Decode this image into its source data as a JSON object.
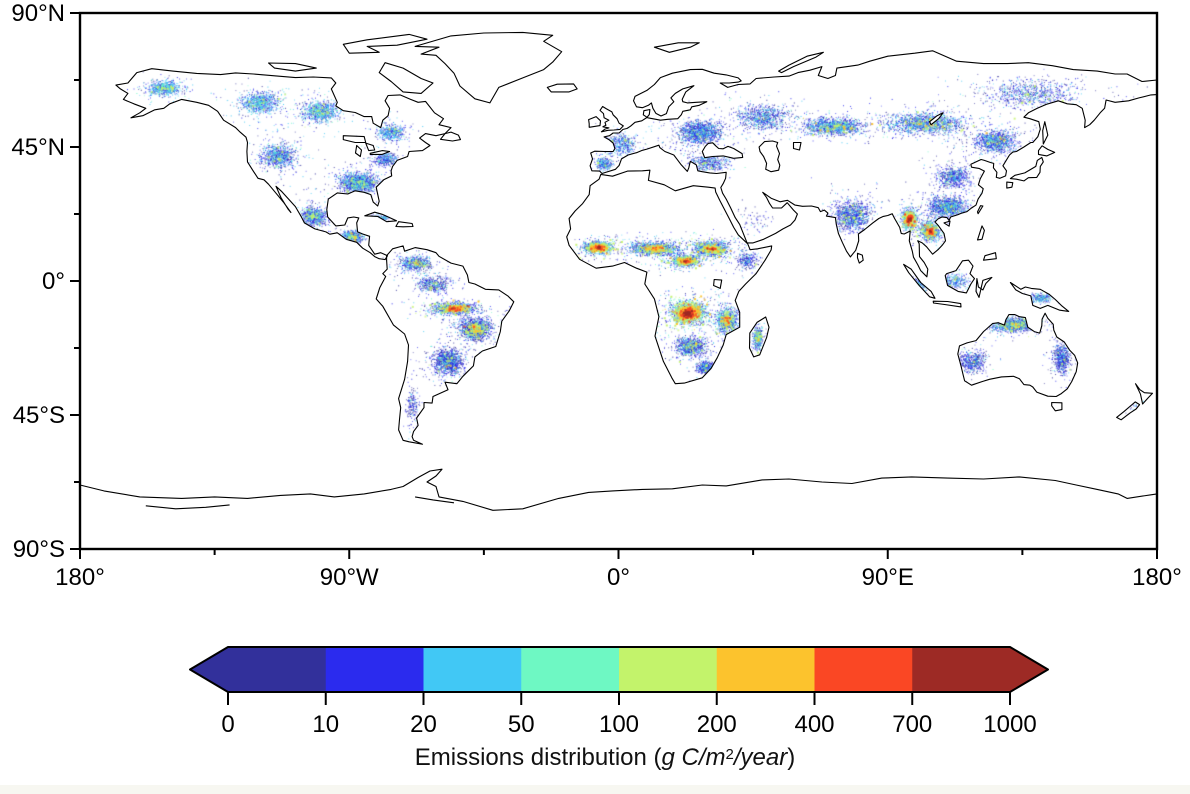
{
  "page": {
    "background": "#ffffff",
    "footer_strip_color": "#f7f7f1"
  },
  "chart_data": {
    "type": "heatmap",
    "title": "",
    "projection": "equirectangular world map",
    "units": "g C/m2/year",
    "axes": {
      "x": {
        "range_deg": [
          -180,
          180
        ],
        "tick_labels": [
          "180°",
          "90°W",
          "0°",
          "90°E",
          "180°"
        ],
        "major_step_deg": 90,
        "minor_step_deg": 45
      },
      "y": {
        "range_deg": [
          -90,
          90
        ],
        "tick_labels": [
          "90°N",
          "45°N",
          "0°",
          "45°S",
          "90°S"
        ],
        "major_step_deg": 45,
        "minor_step_deg": 22.5
      }
    },
    "colorbar": {
      "label_prefix": "Emissions distribution (",
      "label_italic_1": "g C/m",
      "label_superscript": "2",
      "label_italic_2": "/year",
      "label_suffix": ")",
      "tick_labels": [
        "0",
        "10",
        "20",
        "50",
        "100",
        "200",
        "400",
        "700",
        "1000"
      ],
      "bin_edges": [
        0,
        10,
        20,
        50,
        100,
        200,
        400,
        700,
        1000
      ],
      "bin_colors": [
        "#32309b",
        "#2b2bee",
        "#41c8f5",
        "#6ef8c3",
        "#c3f36b",
        "#fcc32d",
        "#fa4724",
        "#9d2a25"
      ],
      "arrow_low_color": "#32309b",
      "arrow_high_color": "#9d2a25"
    },
    "clusters": [
      {
        "name": "alaska",
        "lon": -152,
        "lat": 65,
        "rlon": 8,
        "rlat": 3.5,
        "n": 700,
        "w": [
          2,
          3,
          4,
          1,
          0.3,
          0,
          0,
          0
        ]
      },
      {
        "name": "canada-boreal-west",
        "lon": -120,
        "lat": 60,
        "rlon": 9,
        "rlat": 5,
        "n": 900,
        "w": [
          2,
          3,
          4,
          1,
          0.3,
          0,
          0,
          0
        ]
      },
      {
        "name": "canada-boreal-central",
        "lon": -100,
        "lat": 57,
        "rlon": 9,
        "rlat": 5,
        "n": 900,
        "w": [
          2,
          3,
          3,
          1,
          0.3,
          0,
          0,
          0
        ]
      },
      {
        "name": "canada-east",
        "lon": -76,
        "lat": 50,
        "rlon": 7,
        "rlat": 4,
        "n": 500,
        "w": [
          2,
          3,
          3,
          0.6,
          0.1,
          0,
          0,
          0
        ]
      },
      {
        "name": "us-west",
        "lon": -114,
        "lat": 42,
        "rlon": 8,
        "rlat": 6,
        "n": 900,
        "w": [
          3,
          3,
          2,
          0.6,
          0.15,
          0,
          0,
          0
        ]
      },
      {
        "name": "us-southeast",
        "lon": -87,
        "lat": 33,
        "rlon": 9,
        "rlat": 4.5,
        "n": 1500,
        "w": [
          3,
          3,
          2,
          0.8,
          0.2,
          0,
          0,
          0
        ]
      },
      {
        "name": "us-northeast",
        "lon": -78,
        "lat": 41,
        "rlon": 6,
        "rlat": 3.5,
        "n": 400,
        "w": [
          3,
          2.5,
          1.5,
          0.3,
          0,
          0,
          0,
          0
        ]
      },
      {
        "name": "mexico",
        "lon": -102,
        "lat": 22,
        "rlon": 6,
        "rlat": 4.5,
        "n": 800,
        "w": [
          3,
          3,
          2,
          0.7,
          0.2,
          0,
          0,
          0
        ]
      },
      {
        "name": "central-america",
        "lon": -89,
        "lat": 15,
        "rlon": 5,
        "rlat": 2.8,
        "n": 550,
        "w": [
          2.5,
          3,
          2,
          1,
          0.4,
          0.1,
          0,
          0
        ]
      },
      {
        "name": "cuba-caribbean",
        "lon": -79,
        "lat": 21.5,
        "rlon": 4.5,
        "rlat": 1.2,
        "n": 150,
        "w": [
          2.5,
          3,
          2,
          0.6,
          0.1,
          0,
          0,
          0
        ]
      },
      {
        "name": "colombia-venezuela",
        "lon": -68,
        "lat": 6,
        "rlon": 7,
        "rlat": 3.5,
        "n": 650,
        "w": [
          3,
          3,
          1.5,
          0.6,
          0.3,
          0.1,
          0,
          0
        ]
      },
      {
        "name": "amazon-north",
        "lon": -62,
        "lat": -1,
        "rlon": 8,
        "rlat": 4,
        "n": 500,
        "w": [
          3,
          2.5,
          1,
          0.3,
          0.1,
          0,
          0,
          0
        ]
      },
      {
        "name": "amazon-deforestation-arc",
        "lon": -55,
        "lat": -9,
        "rlon": 11,
        "rlat": 3,
        "n": 1100,
        "w": [
          2,
          2.5,
          1.5,
          1,
          0.9,
          0.5,
          0.25,
          0.06
        ]
      },
      {
        "name": "brazil-cerrado",
        "lon": -48,
        "lat": -16,
        "rlon": 7,
        "rlat": 5,
        "n": 1600,
        "w": [
          3.5,
          3,
          1.2,
          0.7,
          0.5,
          0.15,
          0.05,
          0
        ]
      },
      {
        "name": "brazil-south-paraguay",
        "lon": -57,
        "lat": -27,
        "rlon": 7,
        "rlat": 6,
        "n": 1300,
        "w": [
          4,
          3,
          1,
          0.4,
          0.15,
          0.04,
          0,
          0
        ]
      },
      {
        "name": "andes-patagonia",
        "lon": -69,
        "lat": -42,
        "rlon": 3,
        "rlat": 8,
        "n": 200,
        "w": [
          3,
          2,
          0.6,
          0.1,
          0,
          0,
          0,
          0
        ]
      },
      {
        "name": "europe-west",
        "lon": 0,
        "lat": 46,
        "rlon": 8,
        "rlat": 5,
        "n": 550,
        "w": [
          2.5,
          2.5,
          2,
          0.4,
          0.05,
          0,
          0,
          0
        ]
      },
      {
        "name": "iberia",
        "lon": -5,
        "lat": 39.5,
        "rlon": 4,
        "rlat": 2.8,
        "n": 300,
        "w": [
          2.5,
          2.5,
          2,
          0.5,
          0.1,
          0,
          0,
          0
        ]
      },
      {
        "name": "europe-east",
        "lon": 27,
        "lat": 50,
        "rlon": 10,
        "rlat": 5.5,
        "n": 1400,
        "w": [
          3,
          3,
          1.5,
          0.4,
          0.05,
          0,
          0,
          0
        ]
      },
      {
        "name": "balkans-turkey",
        "lon": 30,
        "lat": 40,
        "rlon": 10,
        "rlat": 4,
        "n": 500,
        "w": [
          3,
          2.5,
          1.2,
          0.3,
          0.05,
          0,
          0,
          0
        ]
      },
      {
        "name": "russia-west",
        "lon": 48,
        "lat": 55,
        "rlon": 12,
        "rlat": 6,
        "n": 900,
        "w": [
          3,
          3,
          1.5,
          0.4,
          0.05,
          0,
          0,
          0
        ]
      },
      {
        "name": "kazakh-steppe",
        "lon": 72,
        "lat": 52,
        "rlon": 14,
        "rlat": 4,
        "n": 1500,
        "w": [
          2.5,
          3,
          2,
          0.8,
          0.3,
          0.05,
          0,
          0
        ]
      },
      {
        "name": "siberia-south",
        "lon": 103,
        "lat": 53,
        "rlon": 18,
        "rlat": 5,
        "n": 1600,
        "w": [
          2.5,
          3,
          2,
          0.7,
          0.25,
          0.05,
          0,
          0
        ]
      },
      {
        "name": "siberia-northeast",
        "lon": 138,
        "lat": 63,
        "rlon": 22,
        "rlat": 7,
        "n": 900,
        "w": [
          2.5,
          3,
          1.5,
          0.4,
          0.1,
          0,
          0,
          0
        ]
      },
      {
        "name": "china-northeast-amur",
        "lon": 126,
        "lat": 47,
        "rlon": 9,
        "rlat": 5,
        "n": 1100,
        "w": [
          3,
          3.5,
          1.5,
          0.5,
          0.15,
          0.04,
          0,
          0
        ]
      },
      {
        "name": "north-china",
        "lon": 112,
        "lat": 35,
        "rlon": 8,
        "rlat": 5,
        "n": 700,
        "w": [
          3,
          3,
          1,
          0.3,
          0.05,
          0,
          0,
          0
        ]
      },
      {
        "name": "south-china",
        "lon": 110,
        "lat": 25,
        "rlon": 9,
        "rlat": 5,
        "n": 1300,
        "w": [
          3,
          3.5,
          1.5,
          0.5,
          0.15,
          0,
          0,
          0
        ]
      },
      {
        "name": "india",
        "lon": 78,
        "lat": 22,
        "rlon": 9,
        "rlat": 7,
        "n": 1200,
        "w": [
          3,
          3,
          1.2,
          0.4,
          0.1,
          0,
          0,
          0
        ]
      },
      {
        "name": "myanmar-northeast-india",
        "lon": 97,
        "lat": 21,
        "rlon": 4,
        "rlat": 5,
        "n": 900,
        "w": [
          1.5,
          2,
          2,
          1.5,
          1.2,
          0.8,
          0.5,
          0.12
        ]
      },
      {
        "name": "laos-vietnam-thailand",
        "lon": 104,
        "lat": 17,
        "rlon": 5,
        "rlat": 5,
        "n": 900,
        "w": [
          2,
          2.5,
          2,
          1.3,
          0.9,
          0.5,
          0.3,
          0.06
        ]
      },
      {
        "name": "borneo",
        "lon": 112,
        "lat": 0,
        "rlon": 7,
        "rlat": 3.5,
        "n": 350,
        "w": [
          2,
          2.5,
          2,
          0.5,
          0.1,
          0,
          0,
          0
        ]
      },
      {
        "name": "sumatra",
        "lon": 101,
        "lat": -1,
        "rlon": 4,
        "rlat": 3,
        "n": 220,
        "w": [
          2,
          2.5,
          2,
          0.5,
          0.1,
          0,
          0,
          0
        ]
      },
      {
        "name": "new-guinea",
        "lon": 141,
        "lat": -5.5,
        "rlon": 6,
        "rlat": 2.5,
        "n": 300,
        "w": [
          2,
          2.5,
          2,
          0.6,
          0.15,
          0,
          0,
          0
        ]
      },
      {
        "name": "west-africa-sahel",
        "lon": -7,
        "lat": 11.5,
        "rlon": 7,
        "rlat": 3,
        "n": 1300,
        "w": [
          1.5,
          2,
          2,
          1.3,
          1.5,
          0.8,
          0.3,
          0.07
        ]
      },
      {
        "name": "central-sahel",
        "lon": 12,
        "lat": 11,
        "rlon": 12,
        "rlat": 3.2,
        "n": 1500,
        "w": [
          2,
          2.5,
          1.8,
          1,
          0.8,
          0.3,
          0.1,
          0
        ]
      },
      {
        "name": "sudan-ethiopia",
        "lon": 31,
        "lat": 11,
        "rlon": 8,
        "rlat": 3.5,
        "n": 1300,
        "w": [
          2,
          2.5,
          1.8,
          1.2,
          1,
          0.4,
          0.12,
          0.02
        ]
      },
      {
        "name": "central-african-republic",
        "lon": 22,
        "lat": 7,
        "rlon": 7,
        "rlat": 2.8,
        "n": 1000,
        "w": [
          1.5,
          2,
          2,
          1.4,
          1.3,
          0.6,
          0.2,
          0.04
        ]
      },
      {
        "name": "congo-angola-zambia",
        "lon": 23,
        "lat": -10.5,
        "rlon": 9,
        "rlat": 6,
        "n": 2400,
        "w": [
          1,
          1.5,
          1.8,
          1.5,
          1.8,
          1.3,
          0.9,
          0.3
        ]
      },
      {
        "name": "tanzania-mozambique",
        "lon": 36,
        "lat": -13,
        "rlon": 5.5,
        "rlat": 6,
        "n": 1000,
        "w": [
          2,
          2.5,
          2,
          1.2,
          0.7,
          0.25,
          0.08,
          0
        ]
      },
      {
        "name": "southern-africa",
        "lon": 24,
        "lat": -22,
        "rlon": 7,
        "rlat": 4.5,
        "n": 900,
        "w": [
          3,
          3,
          1.2,
          0.5,
          0.2,
          0.05,
          0,
          0
        ]
      },
      {
        "name": "south-africa-east",
        "lon": 29,
        "lat": -29,
        "rlon": 4,
        "rlat": 3,
        "n": 450,
        "w": [
          3,
          3,
          1.2,
          0.4,
          0.1,
          0,
          0,
          0
        ]
      },
      {
        "name": "horn-of-africa",
        "lon": 43,
        "lat": 7,
        "rlon": 5,
        "rlat": 4,
        "n": 300,
        "w": [
          3,
          2.5,
          1,
          0.3,
          0.05,
          0,
          0,
          0
        ]
      },
      {
        "name": "arabia-sparse",
        "lon": 45,
        "lat": 20,
        "rlon": 8,
        "rlat": 6,
        "n": 70,
        "w": [
          3,
          2,
          0.5,
          0,
          0,
          0,
          0,
          0
        ]
      },
      {
        "name": "madagascar",
        "lon": 46.5,
        "lat": -19,
        "rlon": 2.2,
        "rlat": 5.5,
        "n": 450,
        "w": [
          2,
          2.5,
          2,
          1,
          0.5,
          0.12,
          0,
          0
        ]
      },
      {
        "name": "australia-north",
        "lon": 132,
        "lat": -14.5,
        "rlon": 11,
        "rlat": 3.5,
        "n": 1300,
        "w": [
          3,
          3,
          1.8,
          1,
          0.4,
          0.08,
          0,
          0
        ]
      },
      {
        "name": "australia-east",
        "lon": 148,
        "lat": -26,
        "rlon": 4,
        "rlat": 7,
        "n": 650,
        "w": [
          3.5,
          3,
          1,
          0.3,
          0.05,
          0,
          0,
          0
        ]
      },
      {
        "name": "australia-west",
        "lon": 118,
        "lat": -27,
        "rlon": 6,
        "rlat": 5,
        "n": 550,
        "w": [
          3.5,
          2.5,
          0.8,
          0.2,
          0.03,
          0,
          0,
          0
        ]
      },
      {
        "name": "tasmania-new-zealand",
        "lon": 170,
        "lat": -41,
        "rlon": 5,
        "rlat": 3,
        "n": 120,
        "w": [
          2.5,
          2.5,
          1.5,
          0.3,
          0,
          0,
          0,
          0
        ]
      }
    ]
  }
}
